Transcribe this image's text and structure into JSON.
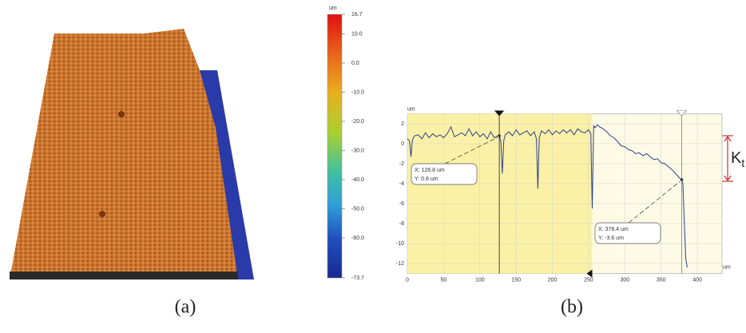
{
  "chart_data": [
    {
      "type": "colorbar",
      "unit": "um",
      "ylim": [
        -73.7,
        16.7
      ],
      "yticks": [
        16.7,
        {
          "value": 10,
          "label": "10.0"
        },
        {
          "value": 0,
          "label": "0.0"
        },
        {
          "value": -10,
          "label": "-10.0"
        },
        {
          "value": -20,
          "label": "-20.0"
        },
        {
          "value": -30,
          "label": "-30.0"
        },
        {
          "value": -40,
          "label": "-40.0"
        },
        {
          "value": -50,
          "label": "-50.0"
        },
        {
          "value": -60,
          "label": "-60.0"
        },
        -73.7
      ]
    },
    {
      "type": "line",
      "x_unit": "um",
      "y_unit": "um",
      "color": "#2c3e8f",
      "xlim": [
        0,
        434
      ],
      "ylim": [
        -13,
        3
      ],
      "xticks": [
        0,
        50,
        100,
        150,
        200,
        250,
        300,
        350,
        400
      ],
      "yticks": [
        2,
        0,
        -2,
        -4,
        -6,
        -8,
        -10,
        -12
      ],
      "shaded_range": [
        0,
        255
      ],
      "x": [
        0,
        3,
        5,
        7,
        10,
        15,
        20,
        25,
        30,
        35,
        40,
        45,
        50,
        55,
        60,
        65,
        70,
        75,
        80,
        85,
        90,
        95,
        100,
        105,
        110,
        115,
        120,
        125,
        127,
        129,
        131,
        133,
        135,
        140,
        145,
        150,
        155,
        160,
        165,
        170,
        175,
        178,
        180,
        182,
        185,
        190,
        195,
        200,
        205,
        210,
        215,
        220,
        225,
        230,
        235,
        240,
        245,
        250,
        253,
        255,
        257,
        259,
        262,
        265,
        270,
        275,
        280,
        285,
        290,
        295,
        300,
        305,
        310,
        315,
        320,
        325,
        330,
        335,
        340,
        345,
        350,
        355,
        360,
        365,
        370,
        375,
        378,
        380,
        382,
        384,
        386
      ],
      "values": [
        0.5,
        0.3,
        -1.3,
        0.4,
        0.8,
        0.9,
        0.5,
        1.1,
        0.6,
        1.0,
        0.7,
        0.9,
        0.6,
        1.0,
        1.7,
        0.7,
        0.9,
        1.1,
        0.8,
        1.5,
        0.8,
        1.2,
        0.7,
        1.0,
        0.5,
        1.2,
        0.6,
        0.8,
        0.8,
        0.2,
        -3.0,
        0.3,
        0.9,
        1.2,
        0.8,
        1.4,
        0.9,
        1.1,
        1.3,
        0.8,
        1.2,
        0.5,
        -4.5,
        0.6,
        1.3,
        1.0,
        1.4,
        0.9,
        1.3,
        1.0,
        1.4,
        1.1,
        1.4,
        0.9,
        1.5,
        1.2,
        1.1,
        1.4,
        1.0,
        -6.5,
        1.8,
        1.6,
        1.9,
        1.7,
        1.5,
        1.2,
        0.8,
        0.6,
        0.2,
        -0.2,
        -0.3,
        -0.6,
        -0.7,
        -1.0,
        -0.9,
        -1.2,
        -1.0,
        -1.3,
        -1.6,
        -1.5,
        -1.9,
        -2.0,
        -2.3,
        -2.6,
        -3.0,
        -3.4,
        -3.6,
        -4.0,
        -8,
        -11.5,
        -12.4
      ],
      "cursors": [
        {
          "x": 126.8,
          "y": 0.8,
          "label_x": "X: 126.8 um",
          "label_y": "Y: 0.8 um"
        },
        {
          "x": 378.4,
          "y": -3.6,
          "label_x": "X: 378.4 um",
          "label_y": "Y: -3.6 um"
        }
      ],
      "kt_label": {
        "main": "K",
        "sub": "t"
      }
    }
  ],
  "captions": [
    "(a)",
    "(b)"
  ]
}
